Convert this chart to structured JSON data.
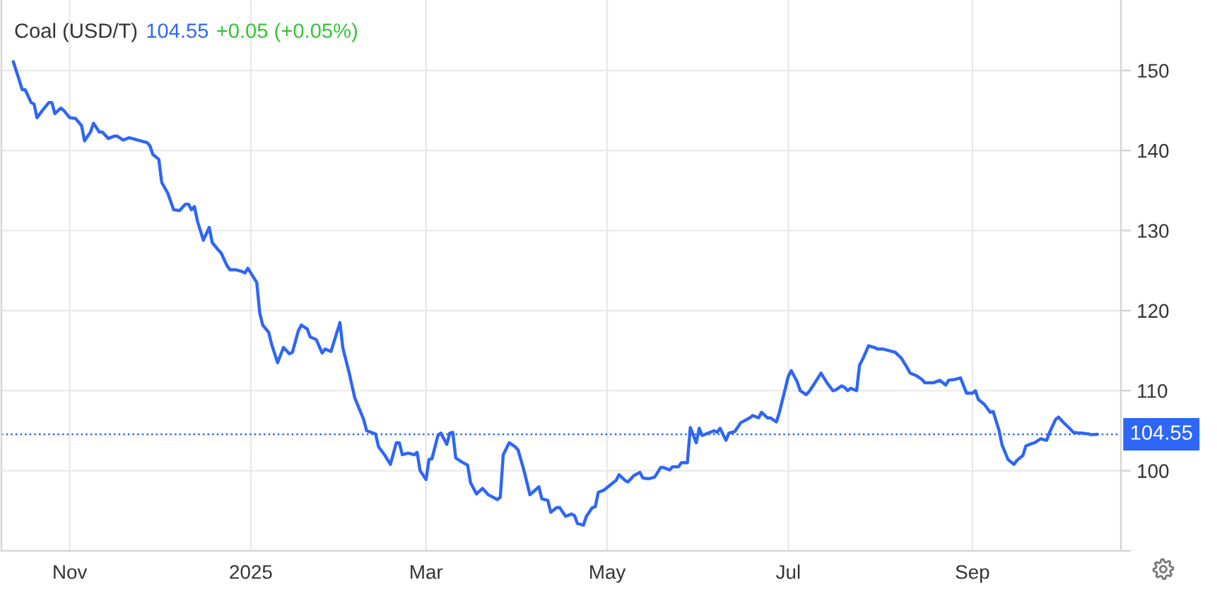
{
  "chart_data": {
    "type": "line",
    "title": "Coal (USD/T)",
    "annotations": [
      "104.55",
      "+0.05 (+0.05%)"
    ],
    "x": [
      "2024-10-13",
      "2024-10-15",
      "2024-10-16",
      "2024-10-17",
      "2024-10-19",
      "2024-10-20",
      "2024-10-21",
      "2024-10-23",
      "2024-10-25",
      "2024-10-26",
      "2024-10-27",
      "2024-10-29",
      "2024-10-30",
      "2024-11-01",
      "2024-11-03",
      "2024-11-05",
      "2024-11-06",
      "2024-11-08",
      "2024-11-09",
      "2024-11-11",
      "2024-11-12",
      "2024-11-14",
      "2024-11-16",
      "2024-11-17",
      "2024-11-19",
      "2024-11-21",
      "2024-11-22",
      "2024-11-25",
      "2024-11-27",
      "2024-11-28",
      "2024-11-29",
      "2024-12-01",
      "2024-12-02",
      "2024-12-04",
      "2024-12-06",
      "2024-12-08",
      "2024-12-10",
      "2024-12-11",
      "2024-12-12",
      "2024-12-13",
      "2024-12-14",
      "2024-12-16",
      "2024-12-18",
      "2024-12-19",
      "2024-12-21",
      "2024-12-22",
      "2024-12-24",
      "2024-12-25",
      "2024-12-27",
      "2024-12-29",
      "2024-12-30",
      "2024-12-31",
      "2025-01-01",
      "2025-01-03",
      "2025-01-04",
      "2025-01-05",
      "2025-01-07",
      "2025-01-08",
      "2025-01-10",
      "2025-01-12",
      "2025-01-14",
      "2025-01-15",
      "2025-01-17",
      "2025-01-18",
      "2025-01-20",
      "2025-01-21",
      "2025-01-23",
      "2025-01-25",
      "2025-01-26",
      "2025-01-28",
      "2025-01-31",
      "2025-02-01",
      "2025-02-03",
      "2025-02-05",
      "2025-02-08",
      "2025-02-09",
      "2025-02-12",
      "2025-02-13",
      "2025-02-15",
      "2025-02-17",
      "2025-02-19",
      "2025-02-20",
      "2025-02-21",
      "2025-02-23",
      "2025-02-25",
      "2025-02-26",
      "2025-02-27",
      "2025-03-01",
      "2025-03-02",
      "2025-03-03",
      "2025-03-05",
      "2025-03-06",
      "2025-03-08",
      "2025-03-09",
      "2025-03-10",
      "2025-03-11",
      "2025-03-13",
      "2025-03-15",
      "2025-03-16",
      "2025-03-18",
      "2025-03-20",
      "2025-03-22",
      "2025-03-23",
      "2025-03-25",
      "2025-03-26",
      "2025-03-27",
      "2025-03-29",
      "2025-03-31",
      "2025-04-01",
      "2025-04-03",
      "2025-04-05",
      "2025-04-08",
      "2025-04-09",
      "2025-04-11",
      "2025-04-12",
      "2025-04-14",
      "2025-04-15",
      "2025-04-17",
      "2025-04-19",
      "2025-04-20",
      "2025-04-21",
      "2025-04-23",
      "2025-04-24",
      "2025-04-26",
      "2025-04-27",
      "2025-04-28",
      "2025-04-30",
      "2025-05-02",
      "2025-05-04",
      "2025-05-05",
      "2025-05-07",
      "2025-05-08",
      "2025-05-10",
      "2025-05-12",
      "2025-05-13",
      "2025-05-15",
      "2025-05-17",
      "2025-05-19",
      "2025-05-20",
      "2025-05-22",
      "2025-05-23",
      "2025-05-25",
      "2025-05-26",
      "2025-05-28",
      "2025-05-29",
      "2025-05-31",
      "2025-06-01",
      "2025-06-02",
      "2025-06-04",
      "2025-06-06",
      "2025-06-07",
      "2025-06-08",
      "2025-06-10",
      "2025-06-11",
      "2025-06-13",
      "2025-06-15",
      "2025-06-18",
      "2025-06-19",
      "2025-06-21",
      "2025-06-22",
      "2025-06-24",
      "2025-06-25",
      "2025-06-27",
      "2025-06-28",
      "2025-06-30",
      "2025-07-01",
      "2025-07-02",
      "2025-07-04",
      "2025-07-05",
      "2025-07-07",
      "2025-07-08",
      "2025-07-10",
      "2025-07-12",
      "2025-07-14",
      "2025-07-16",
      "2025-07-17",
      "2025-07-19",
      "2025-07-20",
      "2025-07-21",
      "2025-07-22",
      "2025-07-24",
      "2025-07-25",
      "2025-07-26",
      "2025-07-28",
      "2025-07-30",
      "2025-07-31",
      "2025-08-02",
      "2025-08-04",
      "2025-08-06",
      "2025-08-08",
      "2025-08-10",
      "2025-08-11",
      "2025-08-13",
      "2025-08-15",
      "2025-08-16",
      "2025-08-19",
      "2025-08-21",
      "2025-08-23",
      "2025-08-24",
      "2025-08-26",
      "2025-08-28",
      "2025-08-30",
      "2025-09-01",
      "2025-09-02",
      "2025-09-03",
      "2025-09-05",
      "2025-09-07",
      "2025-09-08",
      "2025-09-10",
      "2025-09-11",
      "2025-09-13",
      "2025-09-15",
      "2025-09-16",
      "2025-09-18",
      "2025-09-19",
      "2025-09-21",
      "2025-09-22",
      "2025-09-24",
      "2025-09-26",
      "2025-09-27",
      "2025-09-29",
      "2025-09-30",
      "2025-10-02",
      "2025-10-04",
      "2025-10-05",
      "2025-10-07",
      "2025-10-08",
      "2025-10-10",
      "2025-10-11",
      "2025-10-13"
    ],
    "series": [
      {
        "color": "#2e66f5",
        "values": [
          151.1,
          148.8,
          147.6,
          147.6,
          146.0,
          145.8,
          144.1,
          145.1,
          146.0,
          146.0,
          144.6,
          145.3,
          145.0,
          144.1,
          144.0,
          143.1,
          141.2,
          142.3,
          143.4,
          142.3,
          142.3,
          141.5,
          141.8,
          141.8,
          141.3,
          141.6,
          141.5,
          141.2,
          141.0,
          140.6,
          139.5,
          138.9,
          136.0,
          134.7,
          132.6,
          132.5,
          133.3,
          133.3,
          132.6,
          133.0,
          131.2,
          128.8,
          130.4,
          128.5,
          127.6,
          127.2,
          125.6,
          125.1,
          125.1,
          124.9,
          124.7,
          125.3,
          124.7,
          123.5,
          119.7,
          118.2,
          117.3,
          115.8,
          113.5,
          115.4,
          114.6,
          114.8,
          117.5,
          118.2,
          117.7,
          116.7,
          116.4,
          114.7,
          115.2,
          114.9,
          118.5,
          115.3,
          112.4,
          109.1,
          106.4,
          105.0,
          104.6,
          103.0,
          102.0,
          100.8,
          103.5,
          103.5,
          102.0,
          102.2,
          102.0,
          102.3,
          100.0,
          98.9,
          101.4,
          101.5,
          104.4,
          104.7,
          103.3,
          104.7,
          104.8,
          101.6,
          101.1,
          100.7,
          98.5,
          97.1,
          97.8,
          97.0,
          96.8,
          96.4,
          96.7,
          102.0,
          103.5,
          103.0,
          102.6,
          100.0,
          97.0,
          98.0,
          96.5,
          96.3,
          94.8,
          95.4,
          95.4,
          94.3,
          94.6,
          94.4,
          93.4,
          93.2,
          94.3,
          95.4,
          95.5,
          97.3,
          97.6,
          98.2,
          98.8,
          99.5,
          98.8,
          98.6,
          99.4,
          99.8,
          99.1,
          99.0,
          99.2,
          100.4,
          100.4,
          100.1,
          100.5,
          100.5,
          101.0,
          101.0,
          105.4,
          103.5,
          105.3,
          104.4,
          104.7,
          105.0,
          104.8,
          105.3,
          103.8,
          104.7,
          104.9,
          106.0,
          106.6,
          106.9,
          106.6,
          107.3,
          106.6,
          106.6,
          106.1,
          107.3,
          110.3,
          111.8,
          112.5,
          111.1,
          110.0,
          109.5,
          109.9,
          111.0,
          112.2,
          111.0,
          110.0,
          110.1,
          110.6,
          110.4,
          110.0,
          110.3,
          110.0,
          113.2,
          113.9,
          115.6,
          115.4,
          115.2,
          115.2,
          115.0,
          114.8,
          114.1,
          112.9,
          112.2,
          111.9,
          111.4,
          111.0,
          111.0,
          111.3,
          110.7,
          111.3,
          111.4,
          111.6,
          109.7,
          109.7,
          110.0,
          108.9,
          108.3,
          107.3,
          107.4,
          105.0,
          103.2,
          101.4,
          100.8,
          101.3,
          101.9,
          103.1,
          103.4,
          103.5,
          104.0,
          103.8,
          104.8,
          106.4,
          106.7,
          105.9,
          105.2,
          104.8,
          104.7,
          104.7,
          104.6,
          104.5,
          104.55
        ]
      }
    ],
    "xlim": [
      "2024-10-09",
      "2025-10-21"
    ],
    "xticks": [
      {
        "value": "2024-11-01",
        "label": "Nov"
      },
      {
        "value": "2025-01-01",
        "label": "2025"
      },
      {
        "value": "2025-03-01",
        "label": "Mar"
      },
      {
        "value": "2025-05-01",
        "label": "May"
      },
      {
        "value": "2025-07-01",
        "label": "Jul"
      },
      {
        "value": "2025-09-01",
        "label": "Sep"
      }
    ],
    "ylim": [
      90,
      158.8
    ],
    "yticks": [
      {
        "value": 90,
        "label": null
      },
      100,
      110,
      120,
      130,
      140,
      150
    ],
    "ref_lines": [
      {
        "axis": "y",
        "value": 104.55,
        "label": "104.55",
        "color": "#2e66f5",
        "line_style": "dotted"
      }
    ],
    "grid": true,
    "marker": "none",
    "line_style": "solid"
  }
}
